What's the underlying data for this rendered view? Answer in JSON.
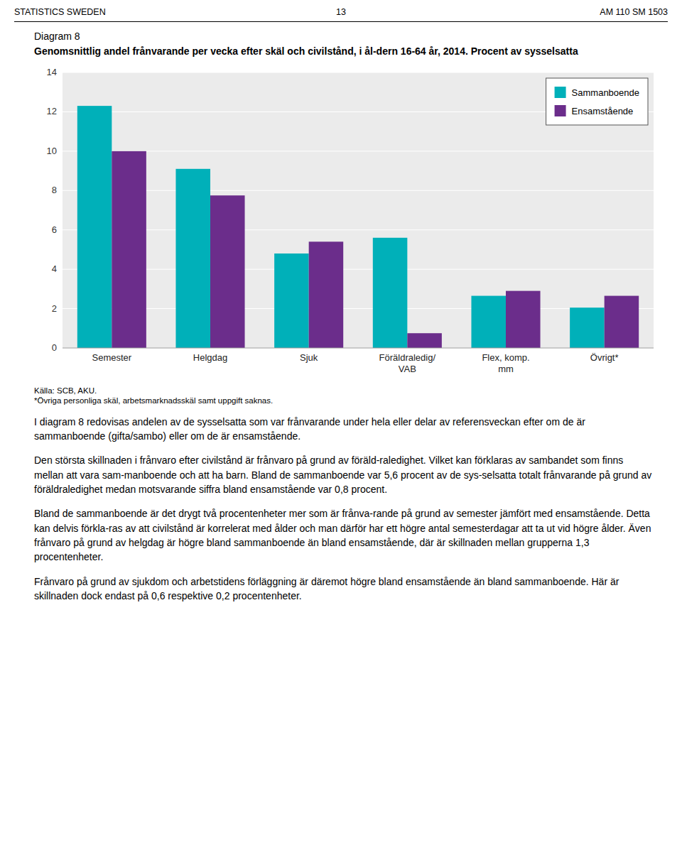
{
  "chart_data": {
    "type": "bar",
    "title": "Diagram 8",
    "subtitle": "Genomsnittlig andel frånvarande per vecka efter skäl och civilstånd, i ål-dern 16-64 år, 2014. Procent av sysselsatta",
    "categories": [
      "Semester",
      "Helgdag",
      "Sjuk",
      "Föräldraledig/\nVAB",
      "Flex, komp.\nmm",
      "Övrigt*"
    ],
    "series": [
      {
        "name": "Sammanboende",
        "color": "#00B0B9",
        "values": [
          12.3,
          9.1,
          4.8,
          5.6,
          2.65,
          2.05
        ]
      },
      {
        "name": "Ensamstående",
        "color": "#6B2D8B",
        "values": [
          10.0,
          7.75,
          5.4,
          0.75,
          2.9,
          2.65
        ]
      }
    ],
    "ylim": [
      0,
      14
    ],
    "yticks": [
      0,
      2,
      4,
      6,
      8,
      10,
      12,
      14
    ],
    "grid": true,
    "legend": "upper right",
    "annotations": [
      "Källa: SCB, AKU.",
      "*Övriga personliga skäl, arbetsmarknadsskäl samt uppgift saknas."
    ]
  },
  "page": {
    "header_left": "STATISTICS SWEDEN",
    "header_center": "13",
    "header_right": "AM 110 SM 1503",
    "paragraphs": [
      "I diagram 8 redovisas andelen av de sysselsatta som var frånvarande under hela eller delar av referensveckan efter om de är sammanboende (gifta/sambo) eller om de är ensamstående.",
      "Den största skillnaden i frånvaro efter civilstånd är frånvaro på grund av föräld-raledighet. Vilket kan förklaras av sambandet som finns mellan att vara sam-manboende och att ha barn. Bland de sammanboende var 5,6 procent av de sys-selsatta totalt frånvarande på grund av föräldraledighet medan motsvarande siffra bland ensamstående var 0,8 procent.",
      "Bland de sammanboende är det drygt två procentenheter mer som är frånva-rande på grund av semester jämfört med ensamstående. Detta kan delvis förkla-ras av att civilstånd är korrelerat med ålder och man därför har ett högre antal semesterdagar att ta ut vid högre ålder. Även frånvaro på grund av helgdag är högre bland sammanboende än bland ensamstående, där är skillnaden mellan grupperna 1,3 procentenheter.",
      "Frånvaro på grund av sjukdom och arbetstidens förläggning är däremot högre bland ensamstående än bland sammanboende. Här är skillnaden dock endast på 0,6 respektive 0,2 procentenheter."
    ]
  }
}
